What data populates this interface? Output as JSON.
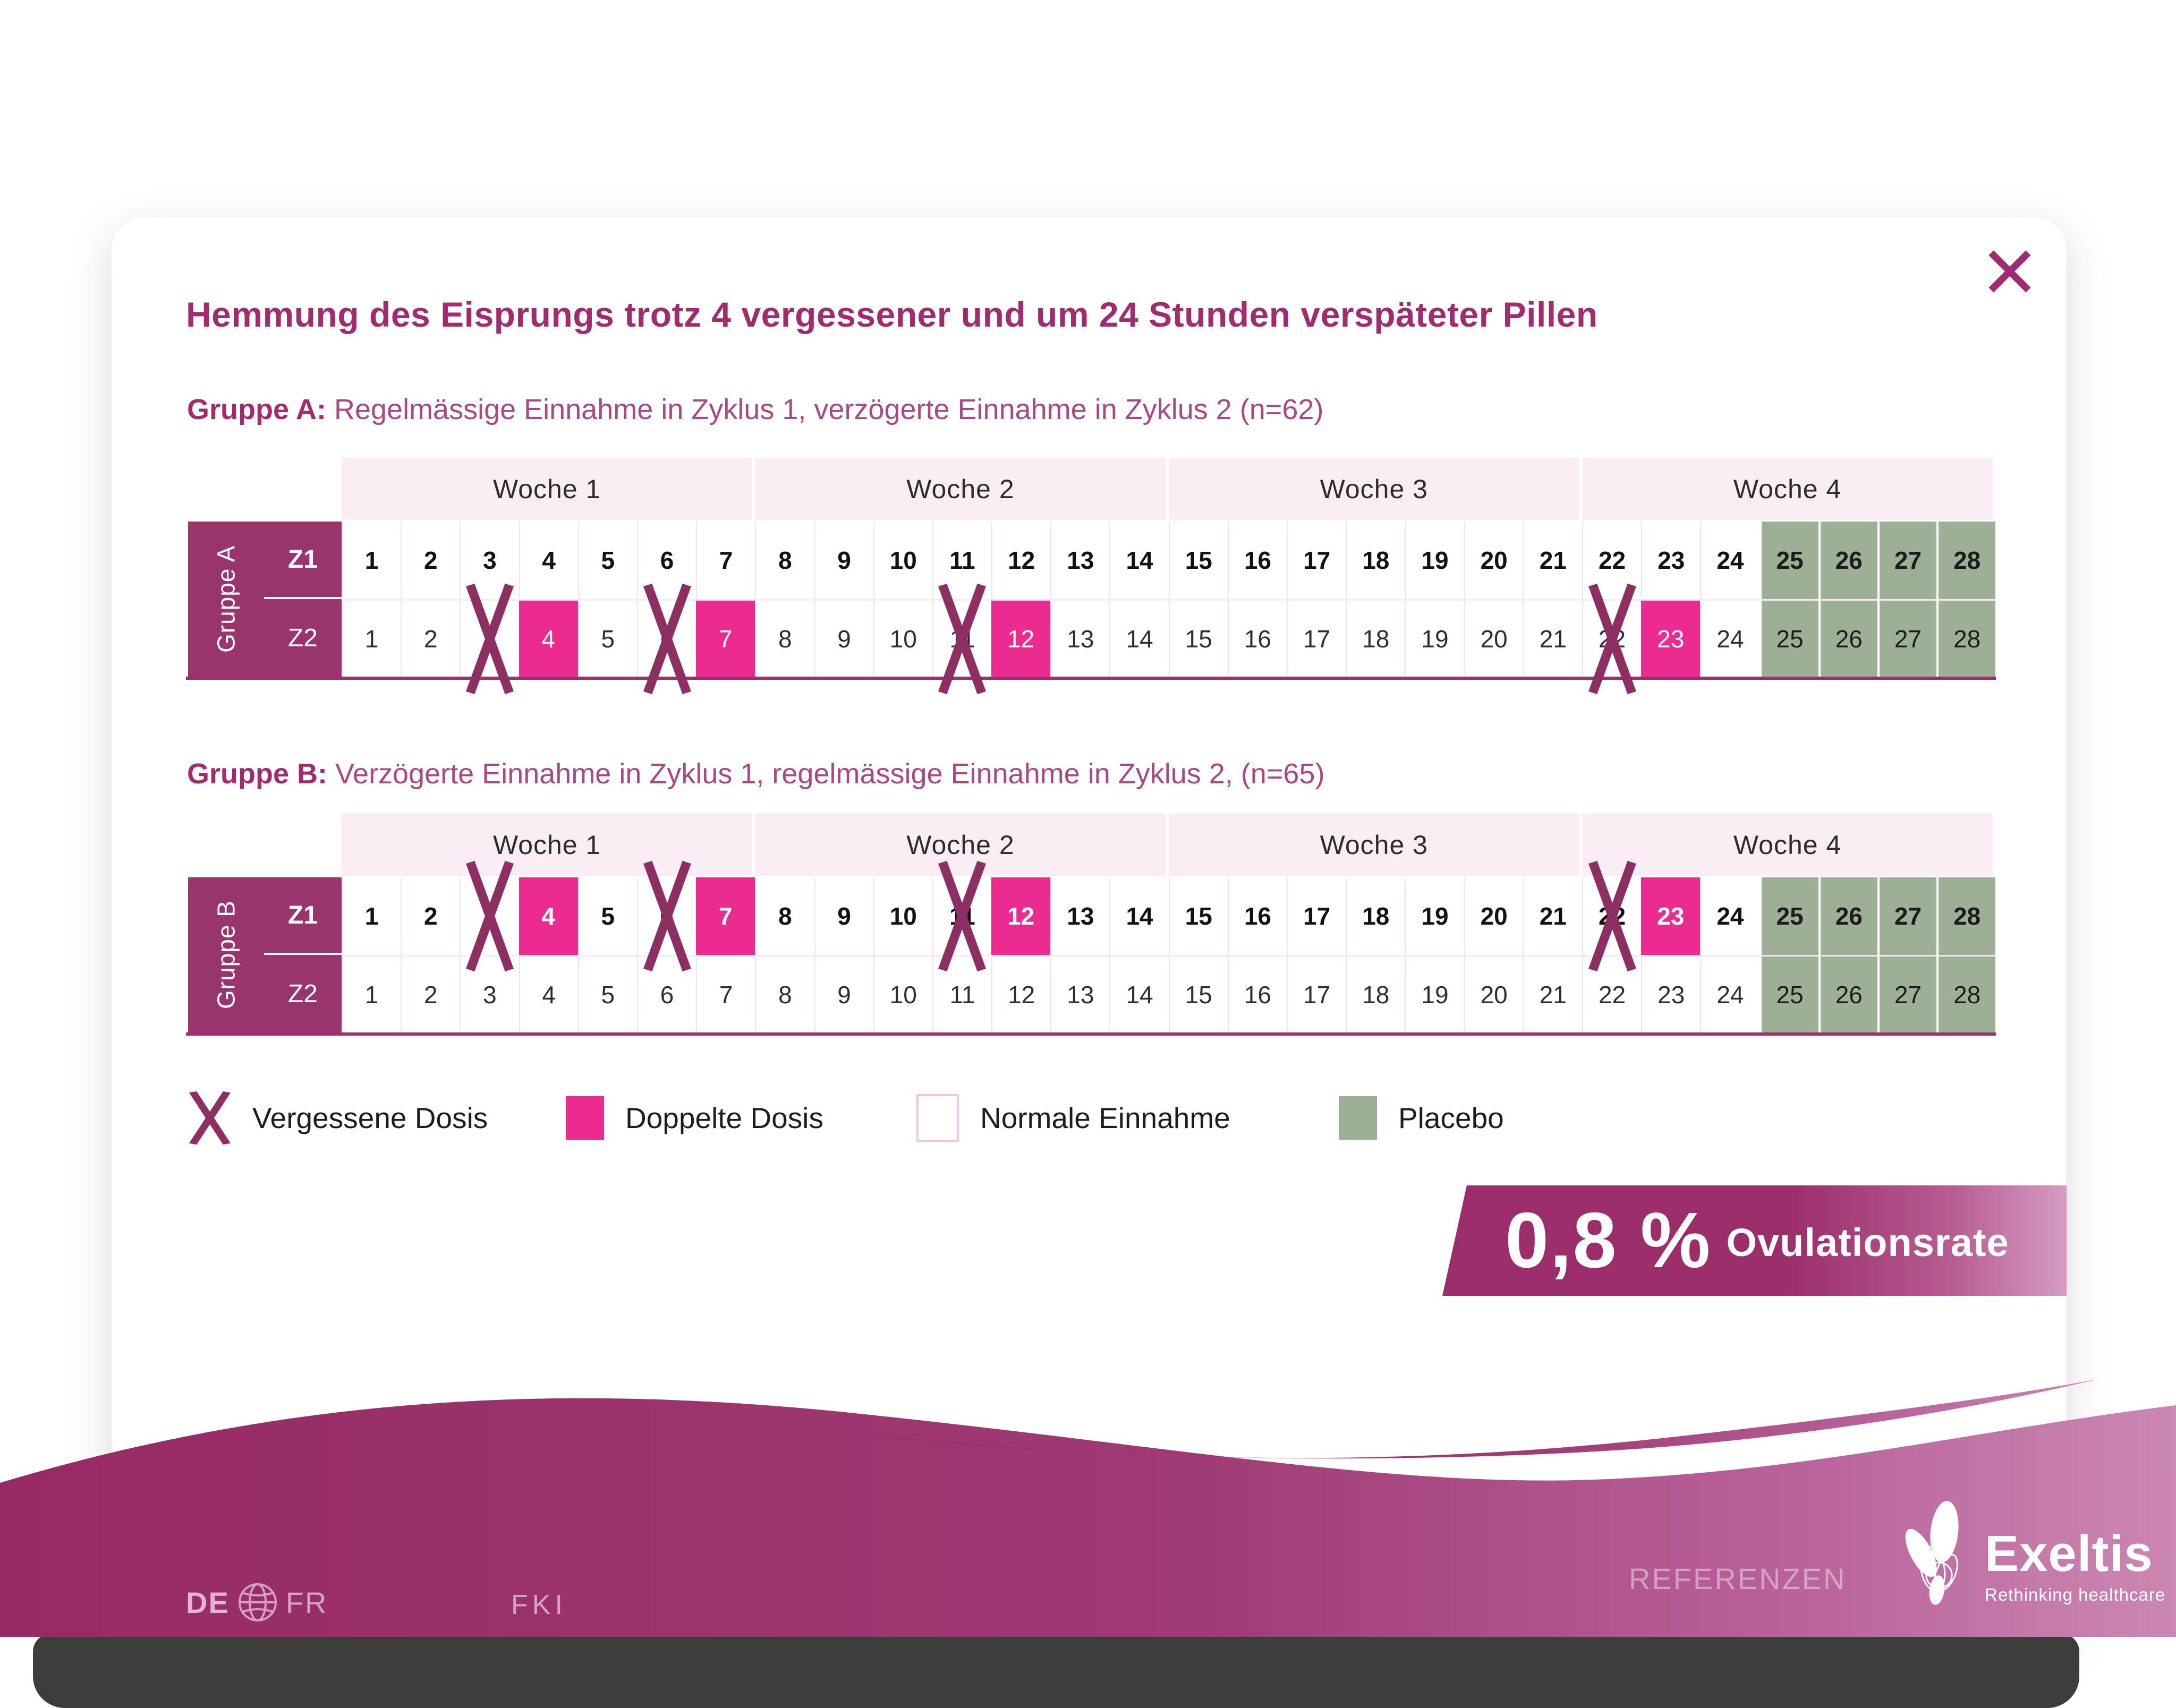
{
  "title": "Hemmung des Eisprungs trotz 4 vergessener und um 24 Stunden verspäteter Pillen",
  "groups": [
    {
      "heading_label": "Gruppe A:",
      "heading_text": " Regelmässige Einnahme in Zyklus 1, verzögerte Einnahme in Zyklus 2 (n=62)",
      "side_label": "Gruppe A",
      "weeks": [
        "Woche 1",
        "Woche 2",
        "Woche 3",
        "Woche 4"
      ],
      "days": 28,
      "rows": [
        {
          "label": "Z1",
          "bold": true,
          "missed": [],
          "double": [],
          "placebo": [
            25,
            26,
            27,
            28
          ]
        },
        {
          "label": "Z2",
          "bold": false,
          "missed": [
            3,
            6,
            11,
            22
          ],
          "double": [
            4,
            7,
            12,
            23
          ],
          "placebo": [
            25,
            26,
            27,
            28
          ]
        }
      ]
    },
    {
      "heading_label": "Gruppe B:",
      "heading_text": " Verzögerte Einnahme in Zyklus 1, regelmässige Einnahme in Zyklus 2, (n=65)",
      "side_label": "Gruppe B",
      "weeks": [
        "Woche 1",
        "Woche 2",
        "Woche 3",
        "Woche 4"
      ],
      "days": 28,
      "rows": [
        {
          "label": "Z1",
          "bold": true,
          "missed": [
            3,
            6,
            11,
            22
          ],
          "double": [
            4,
            7,
            12,
            23
          ],
          "placebo": [
            25,
            26,
            27,
            28
          ]
        },
        {
          "label": "Z2",
          "bold": false,
          "missed": [],
          "double": [],
          "placebo": [
            25,
            26,
            27,
            28
          ]
        }
      ]
    }
  ],
  "legend": [
    {
      "type": "missed",
      "label": "Vergessene Dosis"
    },
    {
      "type": "double",
      "label": "Doppelte Dosis"
    },
    {
      "type": "normal",
      "label": "Normale Einnahme"
    },
    {
      "type": "placebo",
      "label": "Placebo"
    }
  ],
  "banner": {
    "value": "0,8 %",
    "label": "Ovulationsrate"
  },
  "footer": {
    "lang_primary": "DE",
    "lang_secondary": "FR",
    "nav_fki": "FKI",
    "nav_references": "REFERENZEN",
    "brand_name": "Exeltis",
    "brand_tagline": "Rethinking healthcare"
  },
  "colors": {
    "accent_magenta": "#a02b6e",
    "header_magenta": "#99356c",
    "double_pink": "#ec2b90",
    "placebo_green": "#9db097",
    "week_header_pink": "#fbedf5",
    "missed_cross": "#8e2f63",
    "wave_dark": "#982b66",
    "wave_light": "#c983ae",
    "bottom_bar": "#3d3d3c"
  }
}
